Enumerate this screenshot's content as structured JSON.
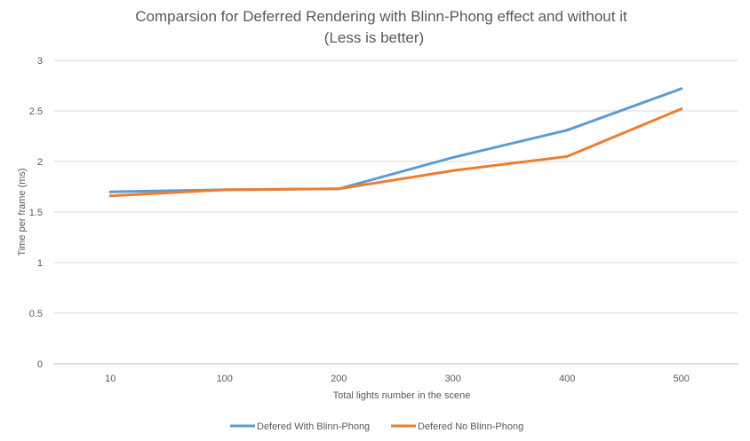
{
  "chart_data": {
    "type": "line",
    "title": "Comparsion for Deferred Rendering with Blinn-Phong effect and without it",
    "subtitle": "(Less is better)",
    "xlabel": "Total lights number in the scene",
    "ylabel": "Time per frame (ms)",
    "categories": [
      "10",
      "100",
      "200",
      "300",
      "400",
      "500"
    ],
    "ylim": [
      0,
      3
    ],
    "yticks": [
      "0",
      "0.5",
      "1",
      "1.5",
      "2",
      "2.5",
      "3"
    ],
    "grid": true,
    "legend_position": "bottom",
    "series": [
      {
        "name": "Defered With Blinn-Phong",
        "color": "#5B9BD5",
        "values": [
          1.7,
          1.72,
          1.73,
          2.04,
          2.31,
          2.72
        ]
      },
      {
        "name": "Defered No Blinn-Phong",
        "color": "#ED7D31",
        "values": [
          1.66,
          1.72,
          1.73,
          1.91,
          2.05,
          2.52
        ]
      }
    ]
  }
}
